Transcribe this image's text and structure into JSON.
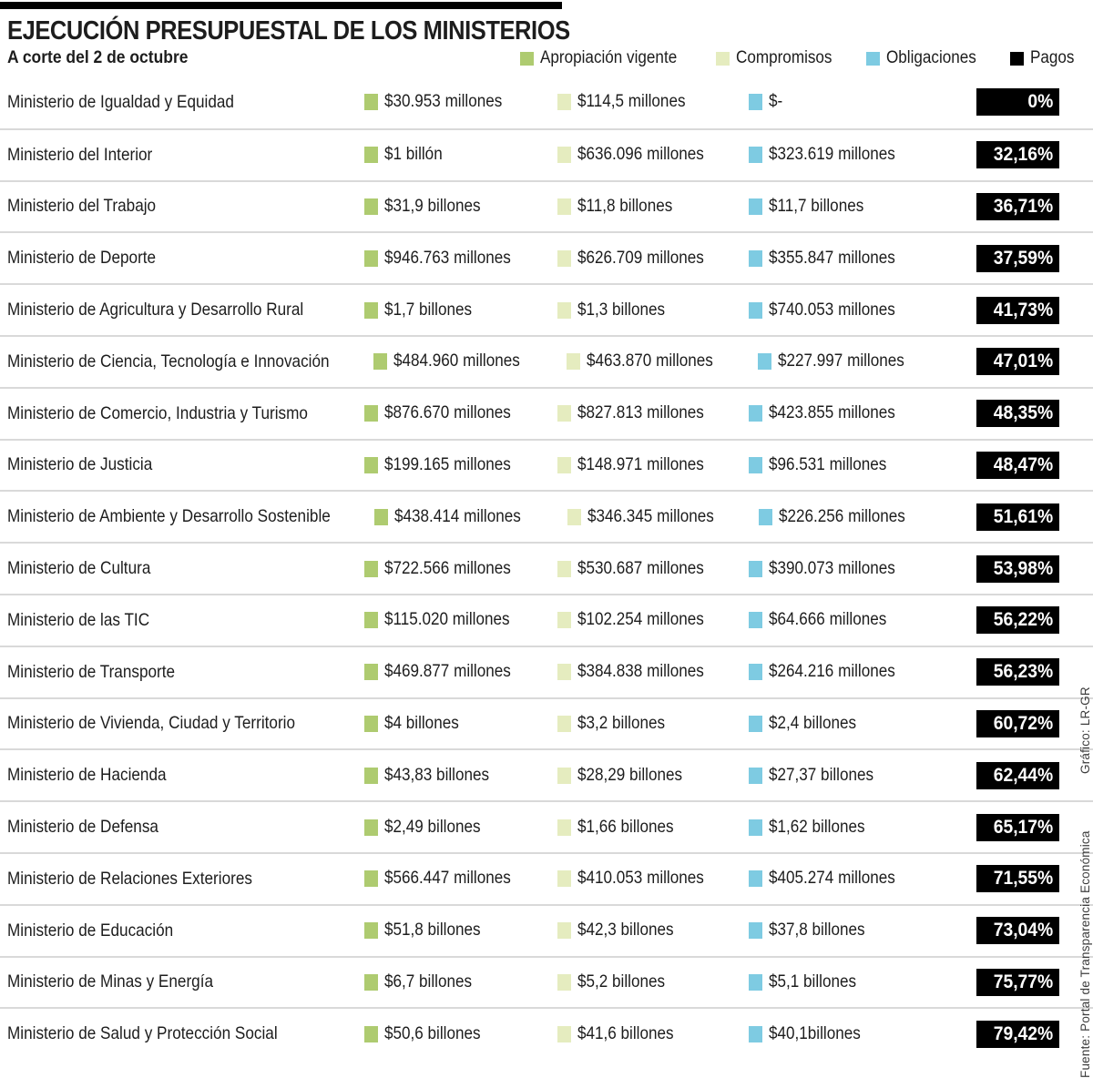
{
  "chart_data": {
    "type": "table",
    "title": "EJECUCIÓN PRESUPUESTAL DE LOS MINISTERIOS",
    "subtitle": "A corte del 2 de octubre",
    "legend": [
      {
        "key": "apropiacion",
        "label": "Apropiación vigente",
        "color": "#aecb70"
      },
      {
        "key": "compromisos",
        "label": "Compromisos",
        "color": "#e5ecbf"
      },
      {
        "key": "obligaciones",
        "label": "Obligaciones",
        "color": "#7ecbe2"
      },
      {
        "key": "pagos",
        "label": "Pagos",
        "color": "#000000"
      }
    ],
    "columns": [
      "Ministerio",
      "Apropiación vigente",
      "Compromisos",
      "Obligaciones",
      "Pagos"
    ],
    "rows": [
      {
        "ministry": "Ministerio de Igualdad y Equidad",
        "apropiacion": "$30.953 millones",
        "compromisos": "$114,5 millones",
        "obligaciones": "$-",
        "pagos": "0%"
      },
      {
        "ministry": "Ministerio del Interior",
        "apropiacion": "$1 billón",
        "compromisos": "$636.096 millones",
        "obligaciones": "$323.619 millones",
        "pagos": "32,16%"
      },
      {
        "ministry": "Ministerio del Trabajo",
        "apropiacion": "$31,9 billones",
        "compromisos": "$11,8 billones",
        "obligaciones": "$11,7 billones",
        "pagos": "36,71%"
      },
      {
        "ministry": "Ministerio de Deporte",
        "apropiacion": "$946.763 millones",
        "compromisos": "$626.709 millones",
        "obligaciones": "$355.847 millones",
        "pagos": "37,59%"
      },
      {
        "ministry": "Ministerio de Agricultura y Desarrollo Rural",
        "apropiacion": "$1,7 billones",
        "compromisos": "$1,3 billones",
        "obligaciones": "$740.053 millones",
        "pagos": "41,73%"
      },
      {
        "ministry": "Ministerio de Ciencia, Tecnología e Innovación",
        "apropiacion": "$484.960 millones",
        "compromisos": "$463.870 millones",
        "obligaciones": "$227.997 millones",
        "pagos": "47,01%"
      },
      {
        "ministry": "Ministerio de Comercio, Industria y Turismo",
        "apropiacion": "$876.670 millones",
        "compromisos": "$827.813 millones",
        "obligaciones": "$423.855 millones",
        "pagos": "48,35%"
      },
      {
        "ministry": "Ministerio de Justicia",
        "apropiacion": "$199.165 millones",
        "compromisos": "$148.971 millones",
        "obligaciones": "$96.531 millones",
        "pagos": "48,47%"
      },
      {
        "ministry": "Ministerio de Ambiente y Desarrollo Sostenible",
        "apropiacion": "$438.414 millones",
        "compromisos": "$346.345 millones",
        "obligaciones": "$226.256 millones",
        "pagos": "51,61%"
      },
      {
        "ministry": "Ministerio de Cultura",
        "apropiacion": "$722.566 millones",
        "compromisos": "$530.687 millones",
        "obligaciones": "$390.073 millones",
        "pagos": "53,98%"
      },
      {
        "ministry": "Ministerio de las TIC",
        "apropiacion": "$115.020 millones",
        "compromisos": "$102.254 millones",
        "obligaciones": "$64.666 millones",
        "pagos": "56,22%"
      },
      {
        "ministry": "Ministerio de Transporte",
        "apropiacion": "$469.877 millones",
        "compromisos": "$384.838 millones",
        "obligaciones": "$264.216 millones",
        "pagos": "56,23%"
      },
      {
        "ministry": "Ministerio de Vivienda, Ciudad y Territorio",
        "apropiacion": "$4 billones",
        "compromisos": "$3,2 billones",
        "obligaciones": "$2,4 billones",
        "pagos": "60,72%"
      },
      {
        "ministry": "Ministerio de Hacienda",
        "apropiacion": "$43,83 billones",
        "compromisos": "$28,29 billones",
        "obligaciones": "$27,37 billones",
        "pagos": "62,44%"
      },
      {
        "ministry": "Ministerio de Defensa",
        "apropiacion": "$2,49 billones",
        "compromisos": "$1,66 billones",
        "obligaciones": "$1,62 billones",
        "pagos": "65,17%"
      },
      {
        "ministry": "Ministerio de Relaciones Exteriores",
        "apropiacion": "$566.447 millones",
        "compromisos": "$410.053 millones",
        "obligaciones": "$405.274 millones",
        "pagos": "71,55%"
      },
      {
        "ministry": "Ministerio de Educación",
        "apropiacion": "$51,8 billones",
        "compromisos": "$42,3 billones",
        "obligaciones": "$37,8 billones",
        "pagos": "73,04%"
      },
      {
        "ministry": "Ministerio de Minas y Energía",
        "apropiacion": "$6,7 billones",
        "compromisos": "$5,2 billones",
        "obligaciones": "$5,1 billones",
        "pagos": "75,77%"
      },
      {
        "ministry": "Ministerio de Salud y Protección Social",
        "apropiacion": "$50,6 billones",
        "compromisos": "$41,6 billones",
        "obligaciones": "$40,1billones",
        "pagos": "79,42%"
      }
    ]
  },
  "credits": {
    "grafico": "Gráfico: LR-GR",
    "fuente": "Fuente: Portal de Transparencia Económica"
  },
  "colors": {
    "topbar": "#000000",
    "separator": "#d9d9d9",
    "badge_bg": "#000000",
    "badge_text": "#ffffff"
  }
}
